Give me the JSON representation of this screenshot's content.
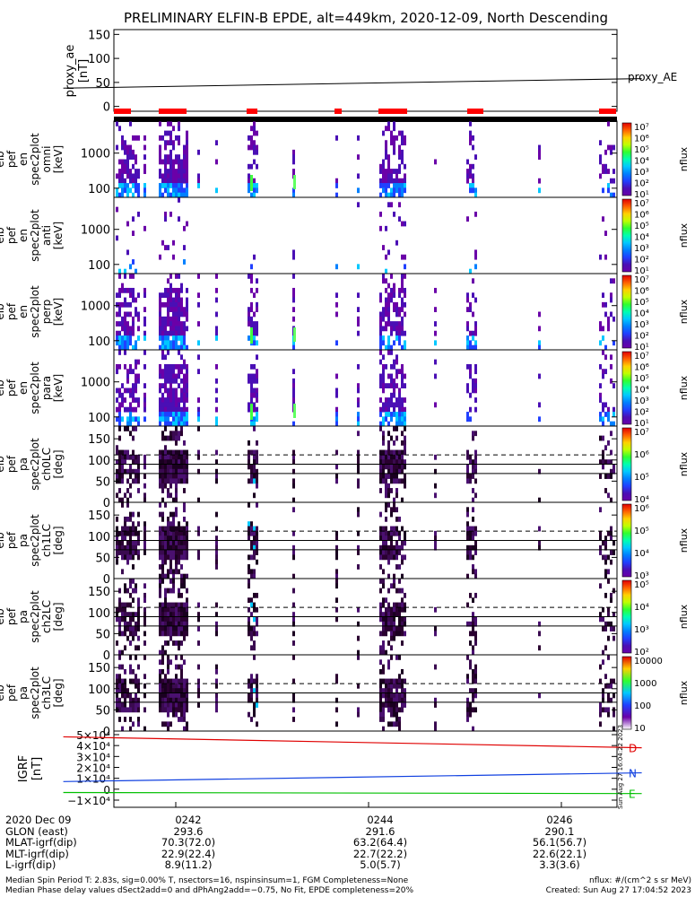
{
  "title": "PRELIMINARY ELFIN-B EPDE, alt=449km, 2020-12-09, North Descending",
  "colors": {
    "trace_red": "#e00000",
    "trace_blue": "#1040e0",
    "trace_green": "#00c000",
    "bar_red": "#ff0000"
  },
  "chart_data": [
    {
      "type": "line",
      "ylabel": [
        "proxy_ae",
        "[nT]"
      ],
      "ylim": [
        -10,
        160
      ],
      "yticks": [
        "150",
        "100",
        "50",
        "0"
      ],
      "series": [
        {
          "name": "proxy_AE",
          "x": [
            "02:40:50",
            "02:46:50"
          ],
          "y": [
            38,
            58
          ]
        }
      ]
    },
    {
      "type": "heatmap",
      "ylabel": [
        "elb",
        "pef",
        "en",
        "spec2plot",
        "omni",
        "[keV]"
      ],
      "scale": "log",
      "yticks": [
        "1000",
        "100"
      ],
      "colorbar": {
        "label": "nflux",
        "ticks": [
          "10⁷",
          "10⁶",
          "10⁵",
          "10⁴",
          "10³",
          "10²",
          "10¹"
        ]
      }
    },
    {
      "type": "heatmap",
      "ylabel": [
        "elb",
        "pef",
        "en",
        "spec2plot",
        "anti",
        "[keV]"
      ],
      "scale": "log",
      "yticks": [
        "1000",
        "100"
      ],
      "colorbar": {
        "label": "nflux",
        "ticks": [
          "10⁷",
          "10⁶",
          "10⁵",
          "10⁴",
          "10³",
          "10²",
          "10¹"
        ]
      }
    },
    {
      "type": "heatmap",
      "ylabel": [
        "elb",
        "pef",
        "en",
        "spec2plot",
        "perp",
        "[keV]"
      ],
      "scale": "log",
      "yticks": [
        "1000",
        "100"
      ],
      "colorbar": {
        "label": "nflux",
        "ticks": [
          "10⁷",
          "10⁶",
          "10⁵",
          "10⁴",
          "10³",
          "10²",
          "10¹"
        ]
      }
    },
    {
      "type": "heatmap",
      "ylabel": [
        "elb",
        "pef",
        "en",
        "spec2plot",
        "para",
        "[keV]"
      ],
      "scale": "log",
      "yticks": [
        "1000",
        "100"
      ],
      "colorbar": {
        "label": "nflux",
        "ticks": [
          "10⁷",
          "10⁶",
          "10⁵",
          "10⁴",
          "10³",
          "10²",
          "10¹"
        ]
      }
    },
    {
      "type": "heatmap",
      "ylabel": [
        "elb",
        "pef",
        "pa",
        "spec2plot",
        "ch0LC",
        "[deg]"
      ],
      "yticks": [
        "150",
        "100",
        "50",
        "0"
      ],
      "colorbar": {
        "label": "nflux",
        "ticks": [
          "10⁷",
          "10⁶",
          "10⁵",
          "10⁴"
        ]
      }
    },
    {
      "type": "heatmap",
      "ylabel": [
        "elb",
        "pef",
        "pa",
        "spec2plot",
        "ch1LC",
        "[deg]"
      ],
      "yticks": [
        "150",
        "100",
        "50",
        "0"
      ],
      "colorbar": {
        "label": "nflux",
        "ticks": [
          "10⁶",
          "10⁵",
          "10⁴",
          "10³"
        ]
      }
    },
    {
      "type": "heatmap",
      "ylabel": [
        "elb",
        "pef",
        "pa",
        "spec2plot",
        "ch2LC",
        "[deg]"
      ],
      "yticks": [
        "150",
        "100",
        "50",
        "0"
      ],
      "colorbar": {
        "label": "nflux",
        "ticks": [
          "10⁵",
          "10⁴",
          "10³",
          "10²"
        ]
      }
    },
    {
      "type": "heatmap",
      "ylabel": [
        "elb",
        "pef",
        "pa",
        "spec2plot",
        "ch3LC",
        "[deg]"
      ],
      "yticks": [
        "150",
        "100",
        "50",
        "0"
      ],
      "colorbar": {
        "label": "nflux",
        "ticks": [
          "10000",
          "1000",
          "100",
          "10"
        ]
      }
    },
    {
      "type": "line",
      "ylabel": [
        "IGRF",
        "[nT]"
      ],
      "yticks": [
        "5×10⁴",
        "4×10⁴",
        "3×10⁴",
        "2×10⁴",
        "1×10⁴",
        "0",
        "−1×10⁴"
      ],
      "series": [
        {
          "name": "D",
          "x": [
            "02:40:50",
            "02:46:50"
          ],
          "y": [
            48000,
            38000
          ]
        },
        {
          "name": "N",
          "x": [
            "02:40:50",
            "02:46:50"
          ],
          "y": [
            7000,
            15000
          ]
        },
        {
          "name": "E",
          "x": [
            "02:40:50",
            "02:46:50"
          ],
          "y": [
            -3000,
            -4000
          ]
        }
      ]
    }
  ],
  "side_stamp": "Sun Aug 27 16:04:22 2023",
  "orbit_table": {
    "rows": [
      {
        "label": "2020 Dec 09",
        "values": [
          "0242",
          "0244",
          "0246"
        ]
      },
      {
        "label": "GLON (east)",
        "values": [
          "293.6",
          "291.6",
          "290.1"
        ]
      },
      {
        "label": "MLAT-igrf(dip)",
        "values": [
          "70.3(72.0)",
          "63.2(64.4)",
          "56.1(56.7)"
        ]
      },
      {
        "label": "MLT-igrf(dip)",
        "values": [
          "22.9(22.4)",
          "22.7(22.2)",
          "22.6(22.1)"
        ]
      },
      {
        "label": "L-igrf(dip)",
        "values": [
          "8.9(11.2)",
          "5.0(5.7)",
          "3.3(3.6)"
        ]
      }
    ]
  },
  "footer": {
    "line1": "Median Spin Period T: 2.83s, sig=0.00% T, nsectors=16, nspinsinsum=1, FGM Completeness=None",
    "line2": "Median Phase delay values dSect2add=0 and dPhAng2add=−0.75, No Fit, EPDE completeness=20%",
    "units": "nflux: #/(cm^2 s sr MeV)",
    "created": "Created: Sun Aug 27 17:04:52 2023"
  }
}
